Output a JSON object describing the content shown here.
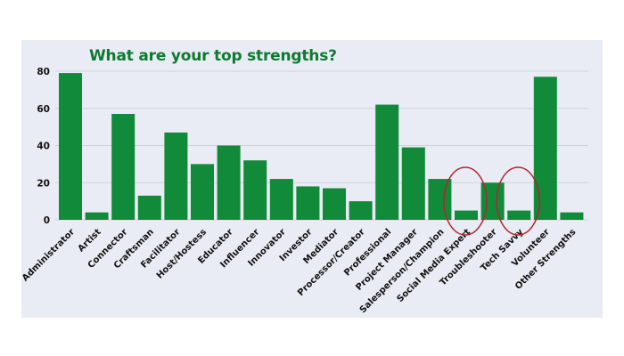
{
  "chart_data": {
    "type": "bar",
    "title": "What are your top strengths?",
    "xlabel": "",
    "ylabel": "",
    "ylim": [
      0,
      80
    ],
    "yticks": [
      0,
      20,
      40,
      60,
      80
    ],
    "grid": true,
    "colors": {
      "bar": "#118a3a",
      "grid": "#cfd3de",
      "annotation": "#b0262b",
      "background": "#e9ecf5",
      "title": "#0e7a2f"
    },
    "categories": [
      "Administrator",
      "Artist",
      "Connector",
      "Craftsman",
      "Facilitator",
      "Host/Hostess",
      "Educator",
      "Influencer",
      "Innovator",
      "Investor",
      "Mediator",
      "Processor/Creator",
      "Professional",
      "Project Manager",
      "Salesperson/Champion",
      "Social Media Expert",
      "Troubleshooter",
      "Tech Savvy",
      "Volunteer",
      "Other Strengths"
    ],
    "values": [
      79,
      4,
      57,
      13,
      47,
      30,
      40,
      32,
      22,
      18,
      17,
      10,
      62,
      39,
      22,
      5,
      20,
      5,
      77,
      4
    ],
    "annotations": [
      {
        "type": "ellipse",
        "category": "Social Media Expert"
      },
      {
        "type": "ellipse",
        "category": "Tech Savvy"
      }
    ]
  }
}
